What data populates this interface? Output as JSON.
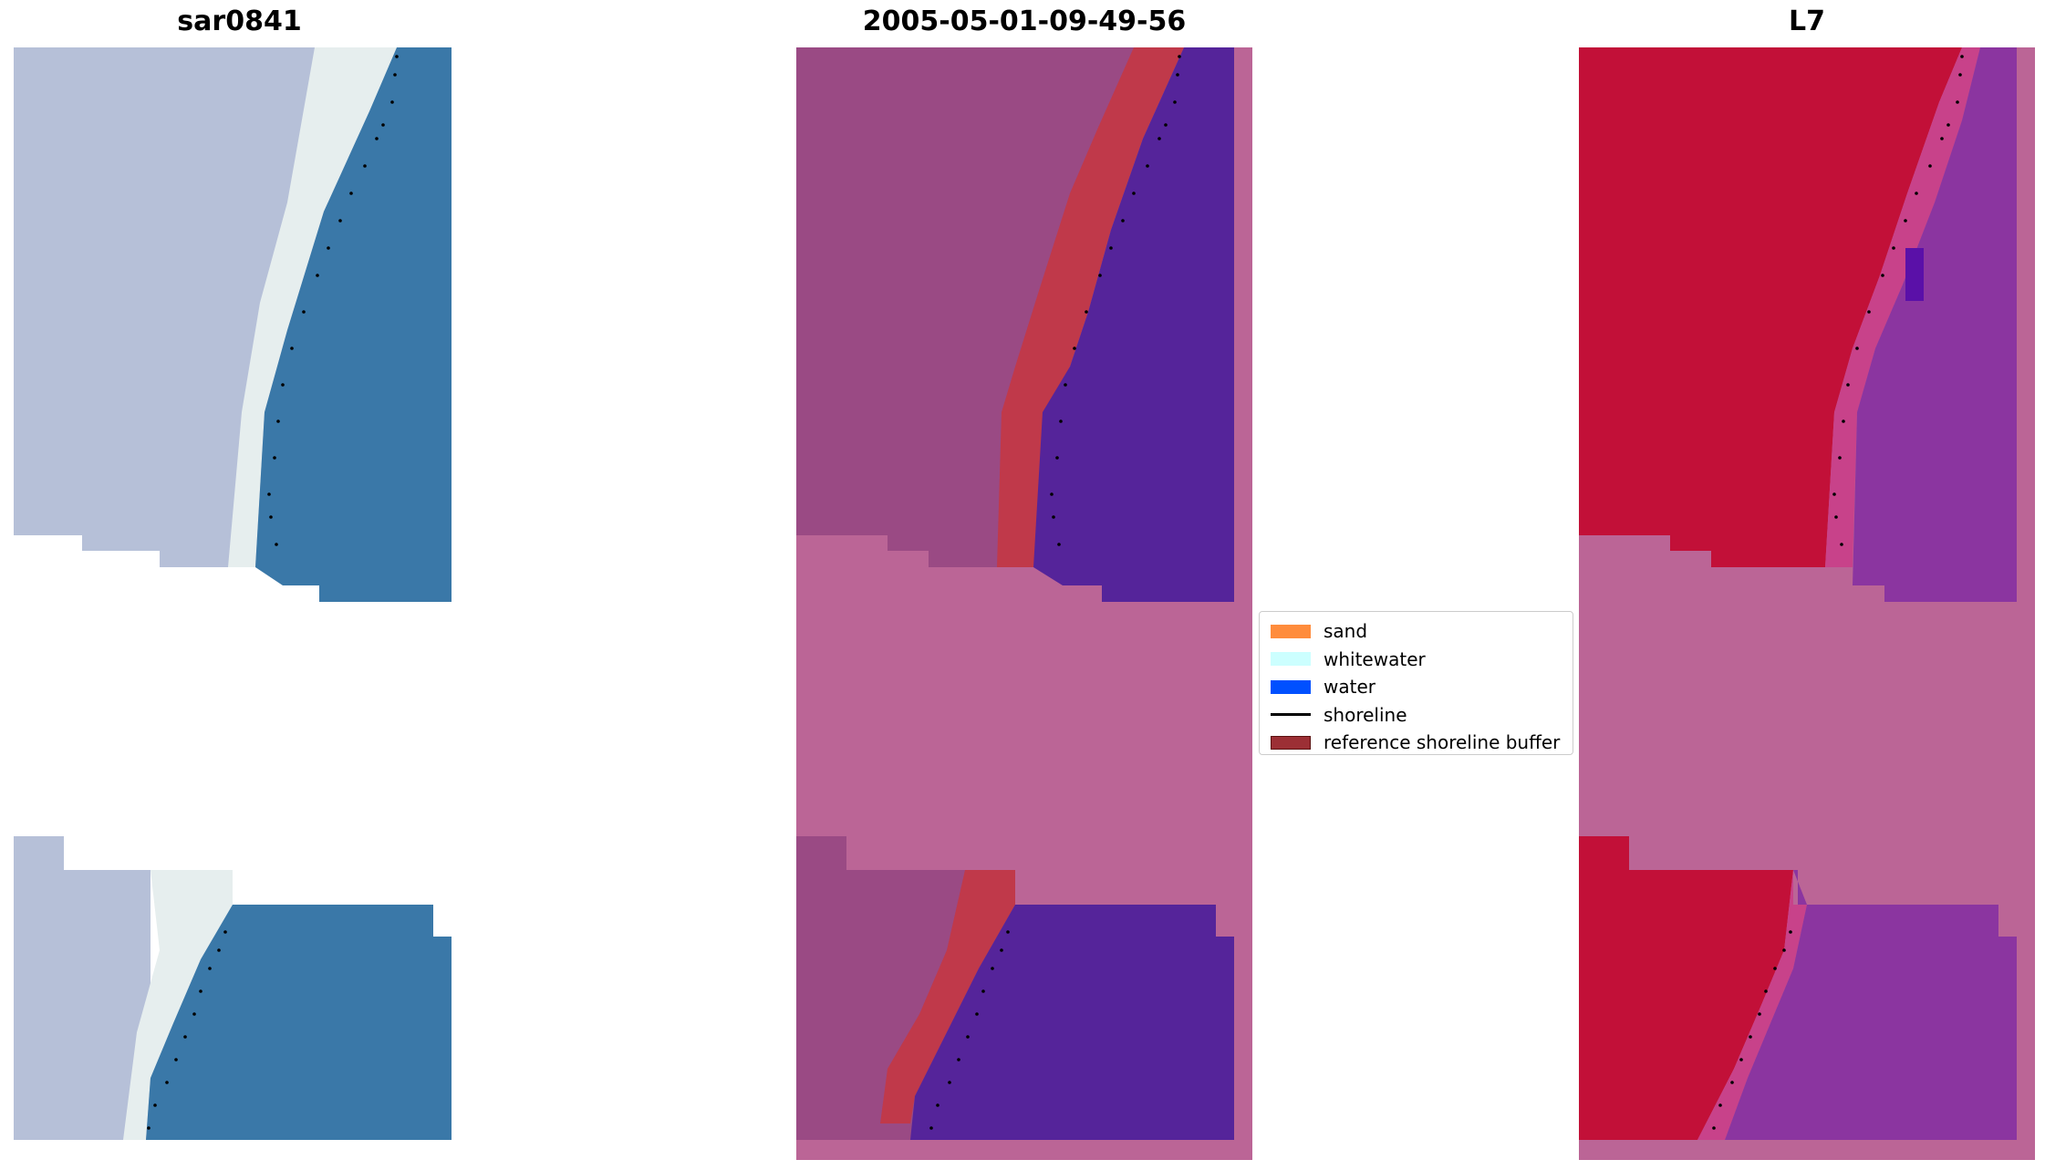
{
  "panels": [
    {
      "title": "sar0841"
    },
    {
      "title": "2005-05-01-09-49-56"
    },
    {
      "title": "L7"
    }
  ],
  "legend": {
    "items": [
      {
        "label": "sand",
        "color": "#ff8c3c",
        "kind": "patch"
      },
      {
        "label": "whitewater",
        "color": "#ccffff",
        "kind": "patch"
      },
      {
        "label": "water",
        "color": "#0050ff",
        "kind": "patch"
      },
      {
        "label": "shoreline",
        "color": "#000000",
        "kind": "line"
      },
      {
        "label": "reference shoreline buffer",
        "color": "#9c2f35",
        "kind": "patch-outlined"
      }
    ]
  },
  "colors": {
    "rgb_land": "#b6c0d8",
    "rgb_whitewater": "#e8f0ee",
    "rgb_water": "#3a78a8",
    "classified_land": "#9a4a84",
    "classified_nodata": "#bb6596",
    "classified_water": "#55249a",
    "buffer": "#c0394a",
    "ndwi_land": "#c21038",
    "ndwi_transition": "#c8428a",
    "ndwi_water": "#8b35a0",
    "ndwi_nodata": "#bb6596"
  }
}
